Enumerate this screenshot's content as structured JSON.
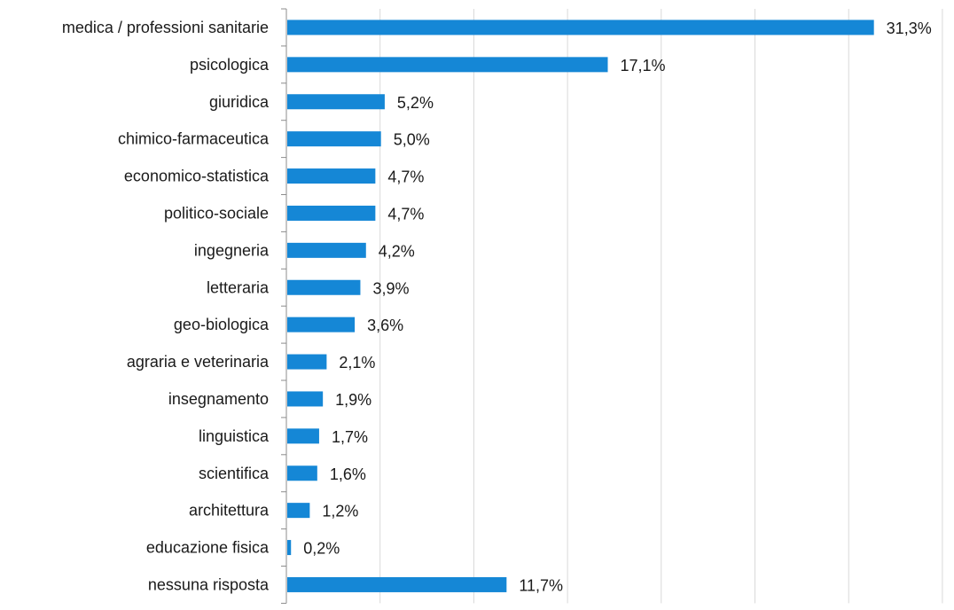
{
  "chart_data": {
    "type": "bar",
    "orientation": "horizontal",
    "categories": [
      "medica / professioni sanitarie",
      "psicologica",
      "giuridica",
      "chimico-farmaceutica",
      "economico-statistica",
      "politico-sociale",
      "ingegneria",
      "letteraria",
      "geo-biologica",
      "agraria e veterinaria",
      "insegnamento",
      "linguistica",
      "scientifica",
      "architettura",
      "educazione fisica",
      "nessuna risposta"
    ],
    "values": [
      31.3,
      17.1,
      5.2,
      5.0,
      4.7,
      4.7,
      4.2,
      3.9,
      3.6,
      2.1,
      1.9,
      1.7,
      1.6,
      1.2,
      0.2,
      11.7
    ],
    "value_labels": [
      "31,3%",
      "17,1%",
      "5,2%",
      "5,0%",
      "4,7%",
      "4,7%",
      "4,2%",
      "3,9%",
      "3,6%",
      "2,1%",
      "1,9%",
      "1,7%",
      "1,6%",
      "1,2%",
      "0,2%",
      "11,7%"
    ],
    "title": "",
    "xlabel": "",
    "ylabel": "",
    "xlim": [
      0,
      35
    ],
    "grid": true,
    "legend": "none",
    "bar_color": "#1587d6",
    "grid_color": "#d9d9d9",
    "axis_color": "#8c8c8c"
  }
}
